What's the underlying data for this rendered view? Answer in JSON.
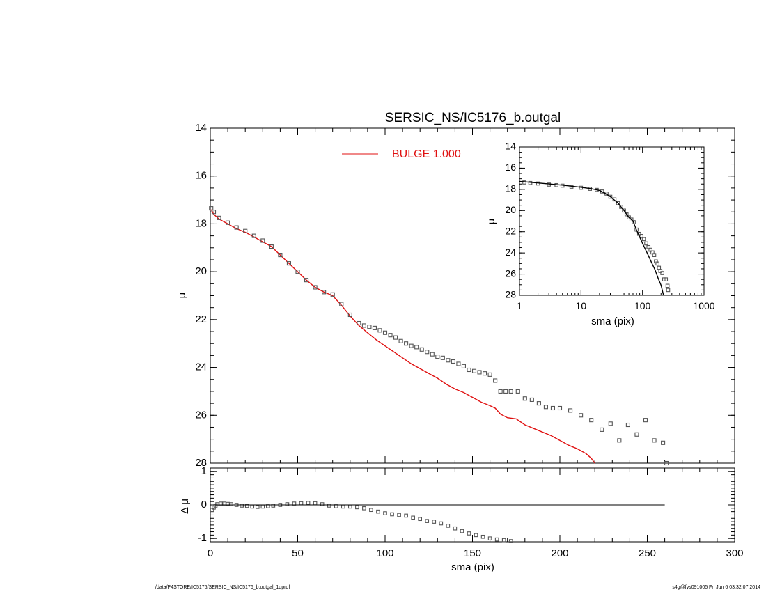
{
  "footer": {
    "left": "/data/P4STORE/IC5176/SERSIC_NS/IC5176_b.outgal_1dprof",
    "right": "s4g@fys091005  Fri Jun  6 03:32:07 2014"
  },
  "colors": {
    "bulge": "#e01010",
    "data": "#555555",
    "axes": "#000000"
  },
  "chart_data": [
    {
      "type": "scatter",
      "title": "SERSIC_NS/IC5176_b.outgal",
      "xlabel": "",
      "ylabel": "μ",
      "xlim": [
        0,
        300
      ],
      "ylim": [
        28,
        14
      ],
      "y_inverted": true,
      "xticks": [
        0,
        50,
        100,
        150,
        200,
        250,
        300
      ],
      "yticks": [
        14,
        16,
        18,
        20,
        22,
        24,
        26,
        28
      ],
      "legend": [
        {
          "label": "BULGE  1.000",
          "color": "#e01010",
          "position": "top"
        }
      ],
      "series": [
        {
          "name": "BULGE  1.000",
          "kind": "line",
          "color": "#e01010",
          "points": [
            [
              0.5,
              17.4
            ],
            [
              2,
              17.6
            ],
            [
              5,
              17.8
            ],
            [
              10,
              18.0
            ],
            [
              15,
              18.2
            ],
            [
              20,
              18.35
            ],
            [
              25,
              18.55
            ],
            [
              30,
              18.75
            ],
            [
              35,
              18.95
            ],
            [
              40,
              19.3
            ],
            [
              45,
              19.65
            ],
            [
              50,
              20.0
            ],
            [
              55,
              20.35
            ],
            [
              60,
              20.65
            ],
            [
              65,
              20.85
            ],
            [
              70,
              21.0
            ],
            [
              75,
              21.4
            ],
            [
              80,
              21.85
            ],
            [
              85,
              22.25
            ],
            [
              90,
              22.55
            ],
            [
              95,
              22.85
            ],
            [
              100,
              23.1
            ],
            [
              105,
              23.35
            ],
            [
              110,
              23.6
            ],
            [
              115,
              23.85
            ],
            [
              120,
              24.05
            ],
            [
              125,
              24.25
            ],
            [
              130,
              24.45
            ],
            [
              135,
              24.7
            ],
            [
              140,
              24.9
            ],
            [
              145,
              25.05
            ],
            [
              150,
              25.25
            ],
            [
              155,
              25.45
            ],
            [
              160,
              25.6
            ],
            [
              163,
              25.7
            ],
            [
              166,
              25.95
            ],
            [
              170,
              26.1
            ],
            [
              175,
              26.15
            ],
            [
              180,
              26.4
            ],
            [
              185,
              26.55
            ],
            [
              190,
              26.7
            ],
            [
              195,
              26.85
            ],
            [
              200,
              27.05
            ],
            [
              205,
              27.25
            ],
            [
              210,
              27.4
            ],
            [
              215,
              27.6
            ],
            [
              218,
              27.8
            ],
            [
              220,
              28.0
            ]
          ]
        },
        {
          "name": "",
          "kind": "markers",
          "color": "#555555",
          "points": [
            [
              0.5,
              17.35
            ],
            [
              2,
              17.5
            ],
            [
              5,
              17.75
            ],
            [
              10,
              17.95
            ],
            [
              15,
              18.15
            ],
            [
              20,
              18.3
            ],
            [
              25,
              18.5
            ],
            [
              30,
              18.7
            ],
            [
              35,
              18.95
            ],
            [
              40,
              19.3
            ],
            [
              45,
              19.65
            ],
            [
              50,
              20.0
            ],
            [
              55,
              20.35
            ],
            [
              60,
              20.65
            ],
            [
              65,
              20.85
            ],
            [
              70,
              20.95
            ],
            [
              75,
              21.35
            ],
            [
              80,
              21.8
            ],
            [
              85,
              22.15
            ],
            [
              88,
              22.25
            ],
            [
              91,
              22.3
            ],
            [
              94,
              22.35
            ],
            [
              97,
              22.45
            ],
            [
              100,
              22.55
            ],
            [
              103,
              22.65
            ],
            [
              106,
              22.75
            ],
            [
              109,
              22.9
            ],
            [
              112,
              23.0
            ],
            [
              115,
              23.1
            ],
            [
              118,
              23.15
            ],
            [
              121,
              23.25
            ],
            [
              124,
              23.35
            ],
            [
              127,
              23.45
            ],
            [
              130,
              23.55
            ],
            [
              133,
              23.6
            ],
            [
              136,
              23.7
            ],
            [
              139,
              23.75
            ],
            [
              142,
              23.85
            ],
            [
              145,
              23.95
            ],
            [
              148,
              24.1
            ],
            [
              151,
              24.15
            ],
            [
              154,
              24.2
            ],
            [
              157,
              24.25
            ],
            [
              160,
              24.3
            ],
            [
              163,
              24.55
            ],
            [
              166,
              25.0
            ],
            [
              169,
              25.0
            ],
            [
              172,
              25.0
            ],
            [
              176,
              25.0
            ],
            [
              180,
              25.3
            ],
            [
              184,
              25.35
            ],
            [
              188,
              25.5
            ],
            [
              192,
              25.65
            ],
            [
              196,
              25.7
            ],
            [
              200,
              25.7
            ],
            [
              206,
              25.8
            ],
            [
              212,
              26.0
            ],
            [
              218,
              26.2
            ],
            [
              224,
              26.6
            ],
            [
              229,
              26.35
            ],
            [
              234,
              27.05
            ],
            [
              239,
              26.4
            ],
            [
              244,
              26.8
            ],
            [
              249,
              26.2
            ],
            [
              254,
              27.05
            ],
            [
              259,
              27.15
            ],
            [
              261,
              28.0
            ]
          ]
        }
      ]
    },
    {
      "type": "scatter",
      "xlabel": "sma (pix)",
      "ylabel": "Δ μ",
      "xlim": [
        0,
        300
      ],
      "ylim": [
        -1.1,
        1.1
      ],
      "xticks": [
        0,
        50,
        100,
        150,
        200,
        250,
        300
      ],
      "yticks": [
        1,
        0,
        -1
      ],
      "series": [
        {
          "name": "",
          "kind": "markers",
          "color": "#555555",
          "points": [
            [
              1,
              -0.15
            ],
            [
              2,
              -0.08
            ],
            [
              3,
              -0.02
            ],
            [
              4,
              0.02
            ],
            [
              6,
              0.04
            ],
            [
              8,
              0.04
            ],
            [
              10,
              0.03
            ],
            [
              12,
              0.02
            ],
            [
              15,
              0.0
            ],
            [
              18,
              -0.02
            ],
            [
              21,
              -0.03
            ],
            [
              24,
              -0.05
            ],
            [
              27,
              -0.06
            ],
            [
              30,
              -0.05
            ],
            [
              33,
              -0.04
            ],
            [
              36,
              -0.02
            ],
            [
              40,
              0.0
            ],
            [
              44,
              0.02
            ],
            [
              48,
              0.04
            ],
            [
              52,
              0.05
            ],
            [
              56,
              0.06
            ],
            [
              60,
              0.05
            ],
            [
              64,
              0.02
            ],
            [
              68,
              -0.02
            ],
            [
              72,
              -0.04
            ],
            [
              76,
              -0.05
            ],
            [
              80,
              -0.05
            ],
            [
              84,
              -0.07
            ],
            [
              88,
              -0.1
            ],
            [
              92,
              -0.15
            ],
            [
              96,
              -0.2
            ],
            [
              100,
              -0.25
            ],
            [
              104,
              -0.28
            ],
            [
              108,
              -0.3
            ],
            [
              112,
              -0.32
            ],
            [
              116,
              -0.38
            ],
            [
              120,
              -0.42
            ],
            [
              124,
              -0.48
            ],
            [
              128,
              -0.5
            ],
            [
              132,
              -0.55
            ],
            [
              136,
              -0.62
            ],
            [
              140,
              -0.7
            ],
            [
              144,
              -0.78
            ],
            [
              148,
              -0.85
            ],
            [
              152,
              -0.9
            ],
            [
              156,
              -0.95
            ],
            [
              160,
              -1.0
            ],
            [
              164,
              -1.03
            ],
            [
              168,
              -1.05
            ],
            [
              172,
              -1.08
            ]
          ]
        },
        {
          "name": "",
          "kind": "reference",
          "color": "#000000",
          "points": [
            [
              0,
              0
            ],
            [
              260,
              0
            ]
          ]
        }
      ]
    },
    {
      "type": "scatter",
      "xlabel": "sma (pix)",
      "ylabel": "μ",
      "xscale": "log",
      "xlim": [
        1,
        1000
      ],
      "ylim": [
        28,
        14
      ],
      "y_inverted": true,
      "xticks": [
        1,
        10,
        100,
        1000
      ],
      "yticks": [
        14,
        16,
        18,
        20,
        22,
        24,
        26,
        28
      ],
      "series": [
        {
          "name": "",
          "kind": "markers",
          "color": "#555555",
          "points": [
            [
              1.2,
              17.35
            ],
            [
              1.5,
              17.4
            ],
            [
              2,
              17.45
            ],
            [
              3,
              17.55
            ],
            [
              4,
              17.6
            ],
            [
              5,
              17.65
            ],
            [
              7,
              17.75
            ],
            [
              10,
              17.85
            ],
            [
              14,
              17.95
            ],
            [
              18,
              18.05
            ],
            [
              22,
              18.2
            ],
            [
              26,
              18.4
            ],
            [
              30,
              18.7
            ],
            [
              35,
              18.95
            ],
            [
              40,
              19.3
            ],
            [
              45,
              19.65
            ],
            [
              50,
              20.0
            ],
            [
              55,
              20.35
            ],
            [
              60,
              20.65
            ],
            [
              66,
              20.85
            ],
            [
              72,
              21.1
            ],
            [
              80,
              21.8
            ],
            [
              88,
              22.2
            ],
            [
              96,
              22.4
            ],
            [
              105,
              22.7
            ],
            [
              115,
              23.1
            ],
            [
              125,
              23.45
            ],
            [
              135,
              23.7
            ],
            [
              145,
              23.95
            ],
            [
              155,
              24.2
            ],
            [
              165,
              24.8
            ],
            [
              175,
              25.0
            ],
            [
              185,
              25.4
            ],
            [
              195,
              25.7
            ],
            [
              210,
              25.9
            ],
            [
              225,
              26.5
            ],
            [
              240,
              26.5
            ],
            [
              255,
              27.1
            ],
            [
              261,
              27.5
            ]
          ]
        },
        {
          "name": "",
          "kind": "line",
          "color": "#000000",
          "points": [
            [
              1,
              17.25
            ],
            [
              2,
              17.4
            ],
            [
              5,
              17.6
            ],
            [
              10,
              17.8
            ],
            [
              15,
              17.95
            ],
            [
              20,
              18.1
            ],
            [
              25,
              18.4
            ],
            [
              30,
              18.7
            ],
            [
              40,
              19.3
            ],
            [
              50,
              20.0
            ],
            [
              60,
              20.65
            ],
            [
              70,
              21.0
            ],
            [
              80,
              21.85
            ],
            [
              100,
              23.1
            ],
            [
              120,
              24.05
            ],
            [
              140,
              24.9
            ],
            [
              160,
              25.6
            ],
            [
              180,
              26.4
            ],
            [
              200,
              27.05
            ],
            [
              220,
              28.0
            ]
          ]
        }
      ]
    }
  ]
}
